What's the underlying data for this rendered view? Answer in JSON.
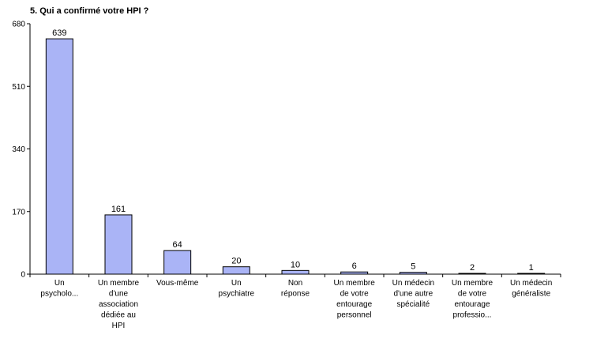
{
  "chart_data": {
    "type": "bar",
    "title": "5. Qui a confirmé votre HPI ?",
    "xlabel": "",
    "ylabel": "",
    "ylim": [
      0,
      680
    ],
    "yticks": [
      0,
      170,
      340,
      510,
      680
    ],
    "grid": false,
    "bar_color": "#aab4f6",
    "categories": [
      [
        "Un",
        "psycholo..."
      ],
      [
        "Un membre",
        "d'une",
        "association",
        "dédiée au",
        "HPI"
      ],
      [
        "Vous-même"
      ],
      [
        "Un",
        "psychiatre"
      ],
      [
        "Non",
        "réponse"
      ],
      [
        "Un membre",
        "de votre",
        "entourage",
        "personnel"
      ],
      [
        "Un médecin",
        "d'une autre",
        "spécialité"
      ],
      [
        "Un membre",
        "de votre",
        "entourage",
        "professio..."
      ],
      [
        "Un médecin",
        "généraliste"
      ]
    ],
    "values": [
      639,
      161,
      64,
      20,
      10,
      6,
      5,
      2,
      1
    ]
  }
}
